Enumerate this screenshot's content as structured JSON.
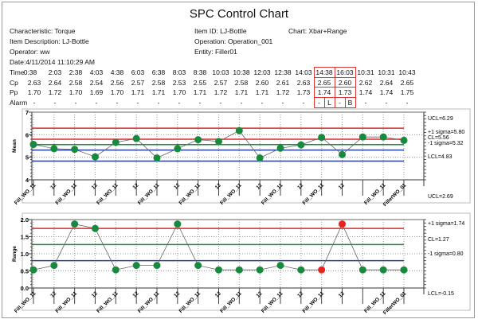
{
  "title": "SPC Control Chart",
  "info": {
    "characteristic": "Characteristic: Torque",
    "item_description": "Item Description: LJ-Bottle",
    "operator": "Operator: ww",
    "date": "Date:4/11/2014 11:10:29 AM",
    "item_id": "Item ID: LJ-Bottle",
    "operation": "Operation: Operation_001",
    "entity": "Entity: Filler01",
    "chart": "Chart: Xbar+Range"
  },
  "table": {
    "labels": {
      "time": "Time",
      "cp": "Cp",
      "pp": "Pp",
      "alarm": "Alarm"
    },
    "time": [
      "0:38",
      "2:03",
      "2:38",
      "4:03",
      "4:38",
      "6:03",
      "6:38",
      "8:03",
      "8:38",
      "10:03",
      "10:38",
      "12:03",
      "12:38",
      "14:03",
      "14:38",
      "16:03",
      "10:31",
      "10:31",
      "10:43"
    ],
    "cp": [
      "2.63",
      "2.64",
      "2.58",
      "2.54",
      "2.56",
      "2.57",
      "2.58",
      "2.53",
      "2.55",
      "2.57",
      "2.58",
      "2.60",
      "2.61",
      "2.63",
      "2.65",
      "2.60",
      "2.62",
      "2.64",
      "2.65"
    ],
    "pp": [
      "1.70",
      "1.72",
      "1.70",
      "1.69",
      "1.70",
      "1.71",
      "1.71",
      "1.70",
      "1.71",
      "1.72",
      "1.71",
      "1.71",
      "1.72",
      "1.73",
      "1.74",
      "1.73",
      "1.74",
      "1.74",
      "1.75"
    ],
    "alarm": [
      [
        "-"
      ],
      [
        "-"
      ],
      [
        "-"
      ],
      [
        "-"
      ],
      [
        "-"
      ],
      [
        "-"
      ],
      [
        "-"
      ],
      [
        "-"
      ],
      [
        "-"
      ],
      [
        "-"
      ],
      [
        "-"
      ],
      [
        "-"
      ],
      [
        "-"
      ],
      [
        "-"
      ],
      [
        "-",
        "L"
      ],
      [
        "-",
        "B"
      ],
      [
        "-"
      ],
      [
        "-"
      ],
      [
        "-"
      ]
    ],
    "highlight_columns": [
      14,
      15
    ]
  },
  "colors": {
    "ucl": "#d92b2b",
    "cl": "#1e8a3a",
    "lcl": "#2b3f9a",
    "point": "#178a3e",
    "alarm_point": "#e8231f",
    "line": "#666666"
  },
  "chart_data": [
    {
      "type": "line",
      "name": "mean",
      "ylabel": "Mean",
      "ylim": [
        4,
        7
      ],
      "yticks": [
        "4",
        "5",
        "6",
        "7"
      ],
      "categories": [
        "Fill_WO_11",
        "12",
        "Fill_WO_11",
        "12",
        "Fill_WO_11",
        "12",
        "Fill_WO_11",
        "12",
        "Fill_WO_11",
        "12",
        "Fill_WO_11",
        "12",
        "Fill_WO_11",
        "12",
        "Fill_WO_11",
        "12",
        "",
        "Fill_WO_11",
        "FillerWO_01"
      ],
      "values": [
        5.57,
        5.38,
        5.35,
        5.02,
        5.66,
        5.83,
        4.97,
        5.38,
        5.78,
        5.7,
        6.18,
        4.97,
        5.4,
        5.55,
        5.88,
        5.12,
        5.9,
        5.9,
        5.75
      ],
      "alarm_points": [],
      "limits": [
        {
          "label": "UCL=6.29",
          "value": 6.29,
          "color": "ucl"
        },
        {
          "label": "+1 sigma=5.80",
          "value": 5.8,
          "color": "ucl"
        },
        {
          "label": "CL=5.56",
          "value": 5.56,
          "color": "cl"
        },
        {
          "label": "-1 sigma=5.32",
          "value": 5.32,
          "color": "lcl"
        },
        {
          "label": "LCL=4.83",
          "value": 4.83,
          "color": "lcl"
        }
      ]
    },
    {
      "type": "line",
      "name": "range",
      "ylabel": "Range",
      "ylim": [
        0,
        2
      ],
      "yticks": [
        "0.0",
        "0.5",
        "1.0",
        "1.5",
        "2.0"
      ],
      "categories": [
        "Fill_WO_11",
        "12",
        "Fill_WO_11",
        "12",
        "Fill_WO_11",
        "12",
        "Fill_WO_11",
        "12",
        "Fill_WO_11",
        "12",
        "Fill_WO_11",
        "12",
        "Fill_WO_11",
        "12",
        "Fill_WO_11",
        "12",
        "",
        "Fill_WO_11",
        "FillerWO_01"
      ],
      "values": [
        0.53,
        0.66,
        1.87,
        1.74,
        0.53,
        0.66,
        0.66,
        1.87,
        0.66,
        0.53,
        0.53,
        0.53,
        0.66,
        0.53,
        0.53,
        1.87,
        0.53,
        0.53,
        0.53
      ],
      "alarm_points": [
        14,
        15
      ],
      "ucl_label": "UCL=2.69",
      "lcl_label": "LCL=-0.15",
      "limits": [
        {
          "label": "+1 sigma=1.74",
          "value": 1.74,
          "color": "ucl"
        },
        {
          "label": "CL=1.27",
          "value": 1.27,
          "color": "cl"
        },
        {
          "label": "-1 sigma=0.80",
          "value": 0.8,
          "color": "lcl"
        }
      ]
    }
  ]
}
